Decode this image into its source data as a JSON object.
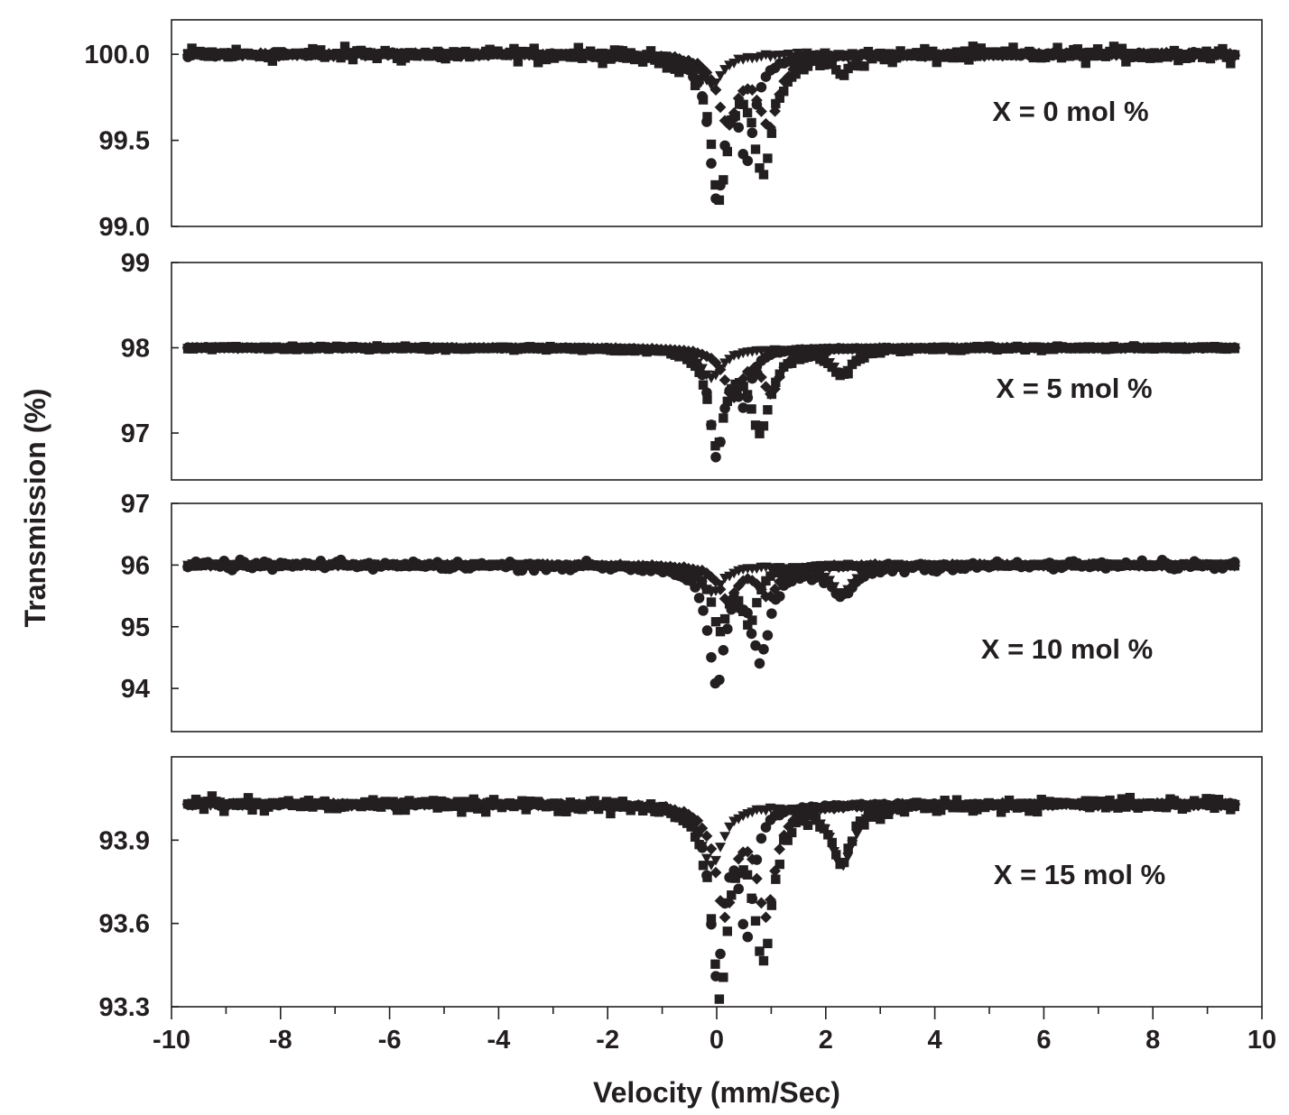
{
  "chart_data": {
    "type": "scatter",
    "xlabel": "Velocity (mm/Sec)",
    "ylabel": "Transmission (%)",
    "xlim": [
      -10,
      10
    ],
    "x_ticks": [
      -10,
      -8,
      -6,
      -4,
      -2,
      0,
      2,
      4,
      6,
      8,
      10
    ],
    "x_tick_labels": [
      "-10",
      "-8",
      "-6",
      "-4",
      "-2",
      "0",
      "2",
      "4",
      "6",
      "8",
      "10"
    ],
    "data_x_range": [
      -9.7,
      9.5
    ],
    "color": "#231f20",
    "panels": [
      {
        "annotation": "X = 0 mol %",
        "ylim": [
          99.0,
          100.2
        ],
        "y_ticks": [
          99.0,
          99.5,
          100.0
        ],
        "y_tick_labels": [
          "99.0",
          "99.5",
          "100.0"
        ],
        "baseline": 100.0,
        "noise": 0.035,
        "components": [
          {
            "marker": "square",
            "role": "observed + total fit",
            "lines": [
              {
                "center": 0.05,
                "depth": 0.8,
                "hwhm": 0.18
              },
              {
                "center": 0.85,
                "depth": 0.67,
                "hwhm": 0.22
              },
              {
                "center": 2.3,
                "depth": 0.08,
                "hwhm": 0.2
              }
            ]
          },
          {
            "marker": "circle",
            "role": "sub-spectrum doublet",
            "lines": [
              {
                "center": 0.0,
                "depth": 0.8,
                "hwhm": 0.17
              },
              {
                "center": 0.55,
                "depth": 0.55,
                "hwhm": 0.17
              }
            ]
          },
          {
            "marker": "diamond",
            "role": "sub-spectrum doublet",
            "lines": [
              {
                "center": 0.2,
                "depth": 0.38,
                "hwhm": 0.22
              },
              {
                "center": 0.95,
                "depth": 0.4,
                "hwhm": 0.22
              }
            ]
          },
          {
            "marker": "triangle-down",
            "role": "sub-spectrum singlet",
            "lines": [
              {
                "center": -0.1,
                "depth": 0.18,
                "hwhm": 0.25
              }
            ]
          }
        ]
      },
      {
        "annotation": "X = 5 mol %",
        "ylim": [
          96.45,
          99.0
        ],
        "y_ticks": [
          97,
          98,
          99
        ],
        "y_tick_labels": [
          "97",
          "98",
          "99"
        ],
        "baseline": 98.0,
        "noise": 0.02,
        "components": [
          {
            "marker": "square",
            "role": "observed + total fit",
            "lines": [
              {
                "center": 0.0,
                "depth": 1.1,
                "hwhm": 0.18
              },
              {
                "center": 0.8,
                "depth": 0.95,
                "hwhm": 0.22
              },
              {
                "center": 2.3,
                "depth": 0.3,
                "hwhm": 0.25
              }
            ]
          },
          {
            "marker": "circle",
            "role": "sub-spectrum doublet",
            "lines": [
              {
                "center": 0.0,
                "depth": 1.25,
                "hwhm": 0.15
              },
              {
                "center": 0.5,
                "depth": 0.6,
                "hwhm": 0.15
              }
            ]
          },
          {
            "marker": "diamond",
            "role": "sub-spectrum doublet",
            "lines": [
              {
                "center": 0.3,
                "depth": 0.55,
                "hwhm": 0.2
              },
              {
                "center": 1.0,
                "depth": 0.5,
                "hwhm": 0.2
              }
            ]
          },
          {
            "marker": "triangle-down",
            "role": "sub-spectrum singlet",
            "lines": [
              {
                "center": -0.1,
                "depth": 0.35,
                "hwhm": 0.25
              },
              {
                "center": 2.3,
                "depth": 0.3,
                "hwhm": 0.25
              }
            ]
          }
        ]
      },
      {
        "annotation": "X = 10 mol %",
        "ylim": [
          93.3,
          97.0
        ],
        "y_ticks": [
          94,
          95,
          96,
          97
        ],
        "y_tick_labels": [
          "94",
          "95",
          "96",
          "97"
        ],
        "baseline": 96.0,
        "noise": 0.06,
        "components": [
          {
            "marker": "circle",
            "role": "observed + total fit",
            "lines": [
              {
                "center": 0.0,
                "depth": 1.85,
                "hwhm": 0.18
              },
              {
                "center": 0.8,
                "depth": 1.45,
                "hwhm": 0.22
              },
              {
                "center": 2.3,
                "depth": 0.5,
                "hwhm": 0.25
              }
            ]
          },
          {
            "marker": "square",
            "role": "sub-spectrum doublet",
            "lines": [
              {
                "center": 0.05,
                "depth": 1.0,
                "hwhm": 0.17
              },
              {
                "center": 0.6,
                "depth": 0.9,
                "hwhm": 0.17
              }
            ]
          },
          {
            "marker": "diamond",
            "role": "sub-spectrum doublet",
            "lines": [
              {
                "center": 0.2,
                "depth": 0.55,
                "hwhm": 0.2
              },
              {
                "center": 0.95,
                "depth": 0.5,
                "hwhm": 0.2
              }
            ]
          },
          {
            "marker": "triangle-down",
            "role": "sub-spectrum singlet",
            "lines": [
              {
                "center": -0.1,
                "depth": 0.45,
                "hwhm": 0.25
              },
              {
                "center": 2.3,
                "depth": 0.45,
                "hwhm": 0.25
              }
            ]
          }
        ]
      },
      {
        "annotation": "X = 15 mol %",
        "ylim": [
          93.3,
          94.2
        ],
        "y_ticks": [
          93.3,
          93.6,
          93.9
        ],
        "y_tick_labels": [
          "93.3",
          "93.6",
          "93.9"
        ],
        "baseline": 94.03,
        "noise": 0.02,
        "components": [
          {
            "marker": "square",
            "role": "observed + total fit",
            "lines": [
              {
                "center": 0.05,
                "depth": 0.66,
                "hwhm": 0.18
              },
              {
                "center": 0.85,
                "depth": 0.52,
                "hwhm": 0.22
              },
              {
                "center": 2.3,
                "depth": 0.2,
                "hwhm": 0.22
              }
            ]
          },
          {
            "marker": "circle",
            "role": "sub-spectrum doublet",
            "lines": [
              {
                "center": 0.0,
                "depth": 0.6,
                "hwhm": 0.15
              },
              {
                "center": 0.55,
                "depth": 0.45,
                "hwhm": 0.15
              }
            ]
          },
          {
            "marker": "diamond",
            "role": "sub-spectrum doublet",
            "lines": [
              {
                "center": 0.15,
                "depth": 0.38,
                "hwhm": 0.2
              },
              {
                "center": 0.9,
                "depth": 0.38,
                "hwhm": 0.2
              }
            ]
          },
          {
            "marker": "triangle-down",
            "role": "sub-spectrum singlet",
            "lines": [
              {
                "center": -0.1,
                "depth": 0.22,
                "hwhm": 0.25
              },
              {
                "center": 2.3,
                "depth": 0.22,
                "hwhm": 0.25
              }
            ]
          }
        ]
      }
    ]
  }
}
